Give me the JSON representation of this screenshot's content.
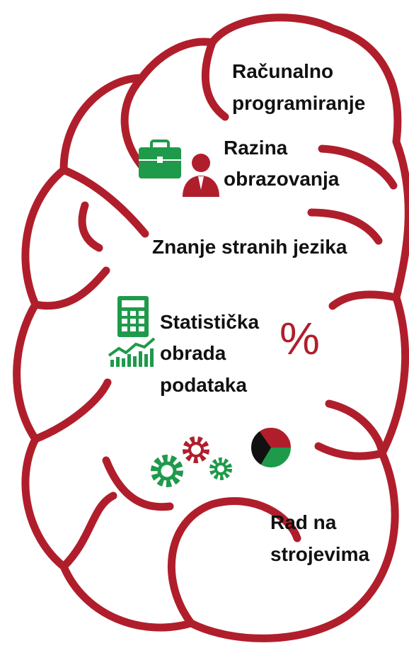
{
  "labels": [
    {
      "lines": [
        "Računalno",
        "programiranje"
      ]
    },
    {
      "lines": [
        "Razina",
        "obrazovanja"
      ]
    },
    {
      "lines": [
        "Znanje stranih jezika"
      ]
    },
    {
      "lines": [
        "Statistička",
        "obrada",
        "podataka"
      ]
    },
    {
      "lines": [
        "Rad na",
        "strojevima"
      ]
    }
  ],
  "percent_sign": "%"
}
